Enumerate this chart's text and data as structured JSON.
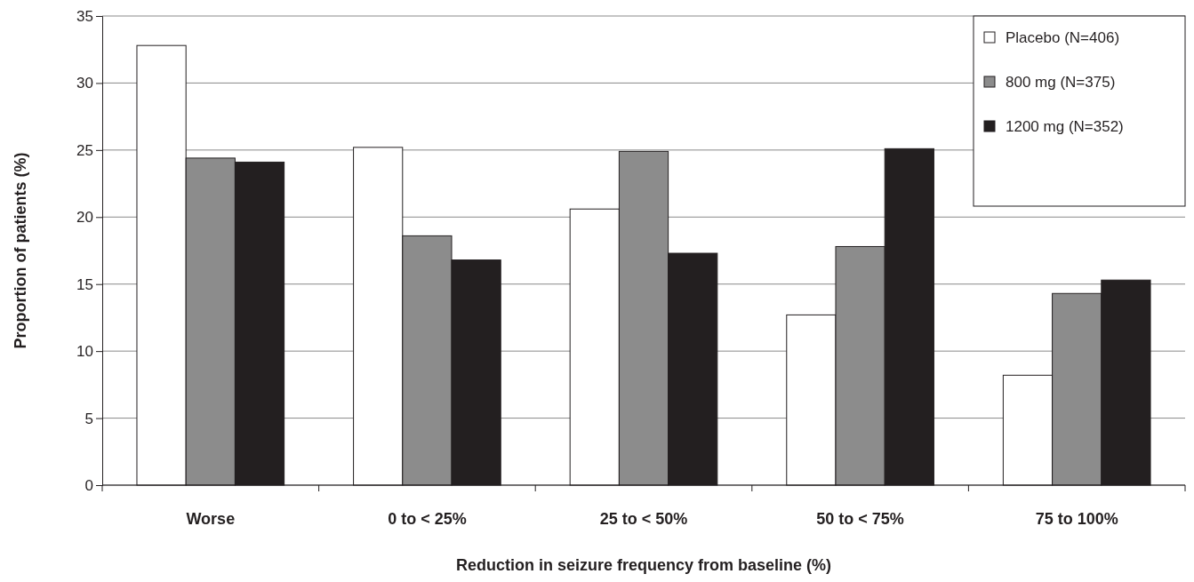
{
  "chart_data": {
    "type": "bar",
    "xlabel": "Reduction in seizure frequency from baseline (%)",
    "ylabel": "Proportion of patients (%)",
    "categories": [
      "Worse",
      "0 to < 25%",
      "25 to < 50%",
      "50 to < 75%",
      "75 to 100%"
    ],
    "series": [
      {
        "name": "Placebo (N=406)",
        "color": "#ffffff",
        "values": [
          32.8,
          25.2,
          20.6,
          12.7,
          8.2
        ]
      },
      {
        "name": "800 mg (N=375)",
        "color": "#8c8c8c",
        "values": [
          24.4,
          18.6,
          24.9,
          17.8,
          14.3
        ]
      },
      {
        "name": "1200 mg (N=352)",
        "color": "#231f20",
        "values": [
          24.1,
          16.8,
          17.3,
          25.1,
          15.3
        ]
      }
    ],
    "ylim": [
      0,
      35
    ],
    "yticks": [
      0,
      5,
      10,
      15,
      20,
      25,
      30,
      35
    ],
    "grid": "y",
    "legend": "top right"
  }
}
